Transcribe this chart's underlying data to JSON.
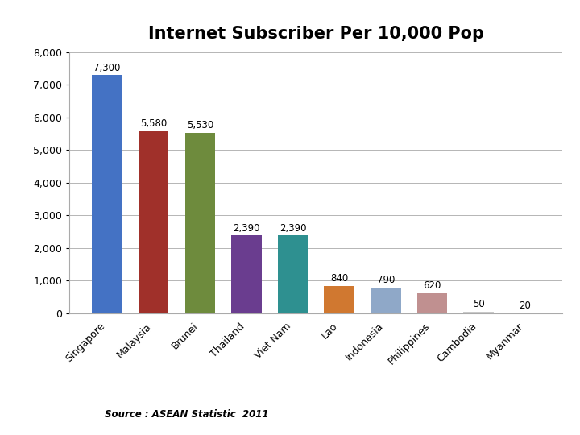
{
  "title": "Internet Subscriber Per 10,000 Pop",
  "categories": [
    "Singapore",
    "Malaysia",
    "Brunei",
    "Thailand",
    "Viet Nam",
    "Lao",
    "Indonesia",
    "Philippines",
    "Cambodia",
    "Myanmar"
  ],
  "values": [
    7300,
    5580,
    5530,
    2390,
    2390,
    840,
    790,
    620,
    50,
    20
  ],
  "bar_colors": [
    "#4472C4",
    "#A0302A",
    "#6E8B3D",
    "#6A3D8F",
    "#2E9090",
    "#D07830",
    "#8FA8C8",
    "#C09090",
    "#C8C8C8",
    "#C8C8C8"
  ],
  "ylim": [
    0,
    8000
  ],
  "yticks": [
    0,
    1000,
    2000,
    3000,
    4000,
    5000,
    6000,
    7000,
    8000
  ],
  "source_text": "Source : ASEAN Statistic  2011",
  "title_fontsize": 15,
  "label_fontsize": 8.5,
  "tick_fontsize": 9,
  "source_fontsize": 8.5,
  "background_color": "#FFFFFF"
}
